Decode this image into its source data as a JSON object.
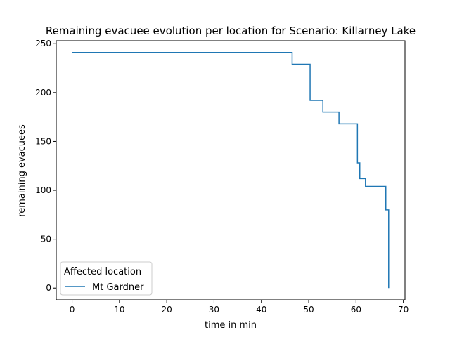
{
  "chart_data": {
    "type": "line",
    "title": "Remaining evacuee evolution per location for Scenario: Killarney Lake",
    "xlabel": "time in min",
    "ylabel": "remaining evacuees",
    "xlim": [
      -3.35,
      70.35
    ],
    "ylim": [
      -12.05,
      253.05
    ],
    "xticks": [
      0,
      10,
      20,
      30,
      40,
      50,
      60,
      70
    ],
    "yticks": [
      0,
      50,
      100,
      150,
      200,
      250
    ],
    "grid": false,
    "step": "post",
    "legend": {
      "title": "Affected location",
      "placement": "lower-left"
    },
    "series": [
      {
        "name": "Mt Gardner",
        "color": "#1f77b4",
        "points": [
          [
            0,
            241
          ],
          [
            46.5,
            241
          ],
          [
            46.5,
            229
          ],
          [
            50.3,
            229
          ],
          [
            50.3,
            192
          ],
          [
            53,
            192
          ],
          [
            53,
            180
          ],
          [
            56.4,
            180
          ],
          [
            56.4,
            168
          ],
          [
            60.3,
            168
          ],
          [
            60.3,
            128
          ],
          [
            60.8,
            128
          ],
          [
            60.8,
            112
          ],
          [
            62,
            112
          ],
          [
            62,
            104
          ],
          [
            66.3,
            104
          ],
          [
            66.3,
            80
          ],
          [
            66.9,
            80
          ],
          [
            66.9,
            0
          ]
        ]
      }
    ]
  }
}
